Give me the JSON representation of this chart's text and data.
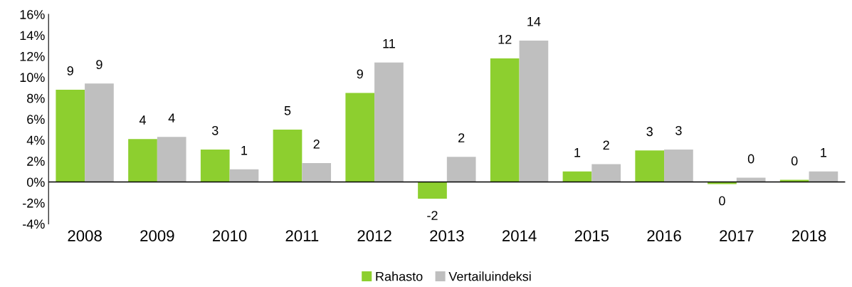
{
  "chart_data": {
    "type": "bar",
    "categories": [
      "2008",
      "2009",
      "2010",
      "2011",
      "2012",
      "2013",
      "2014",
      "2015",
      "2016",
      "2017",
      "2018"
    ],
    "series": [
      {
        "name": "Rahasto",
        "color": "#8dcf2f",
        "values": [
          8.8,
          4.1,
          3.1,
          5.0,
          8.5,
          -1.6,
          11.8,
          1.0,
          3.0,
          -0.2,
          0.2
        ],
        "value_labels": [
          "9",
          "4",
          "3",
          "5",
          "9",
          "-2",
          "12",
          "1",
          "3",
          "0",
          "0"
        ]
      },
      {
        "name": "Vertailuindeksi",
        "color": "#bfbfbf",
        "values": [
          9.4,
          4.3,
          1.2,
          1.8,
          11.4,
          2.4,
          13.5,
          1.7,
          3.1,
          0.4,
          1.0
        ],
        "value_labels": [
          "9",
          "4",
          "1",
          "2",
          "11",
          "2",
          "14",
          "2",
          "3",
          "0",
          "1"
        ]
      }
    ],
    "ylim": [
      -4,
      16
    ],
    "yticks": [
      {
        "value": -4,
        "label": "-4%"
      },
      {
        "value": -2,
        "label": "-2%"
      },
      {
        "value": 0,
        "label": "0%"
      },
      {
        "value": 2,
        "label": "2%"
      },
      {
        "value": 4,
        "label": "4%"
      },
      {
        "value": 6,
        "label": "6%"
      },
      {
        "value": 8,
        "label": "8%"
      },
      {
        "value": 10,
        "label": "10%"
      },
      {
        "value": 12,
        "label": "12%"
      },
      {
        "value": 14,
        "label": "14%"
      },
      {
        "value": 16,
        "label": "16%"
      }
    ],
    "grid": false,
    "ref_lines": [
      {
        "axis": "y",
        "value": 0,
        "color": "#000000",
        "line_style": "solid"
      }
    ],
    "legend": "bottom"
  }
}
